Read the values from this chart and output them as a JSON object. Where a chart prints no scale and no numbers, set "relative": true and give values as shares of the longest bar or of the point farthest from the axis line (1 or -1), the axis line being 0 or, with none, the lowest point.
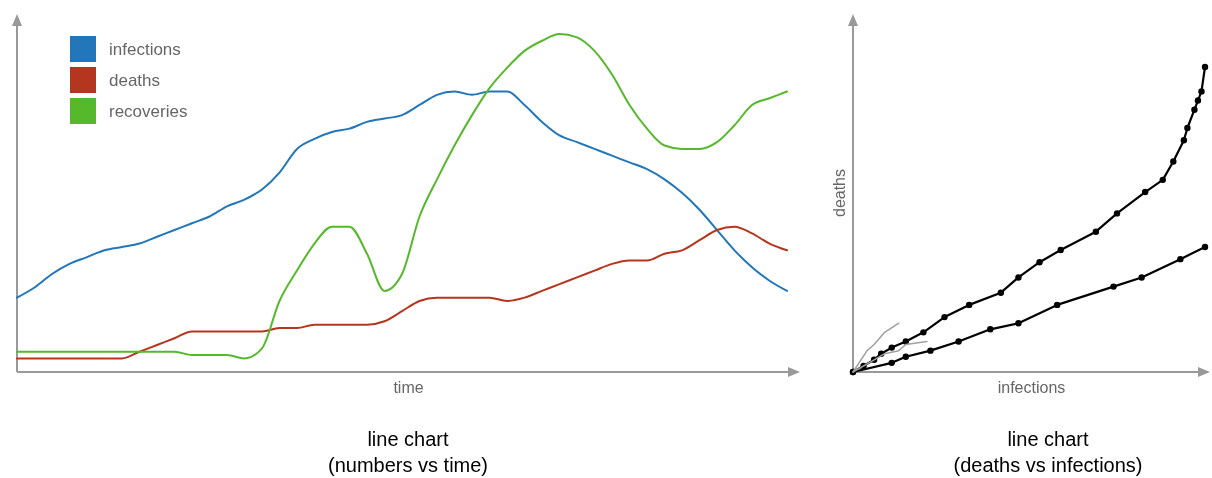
{
  "chart_data": [
    {
      "type": "line",
      "title": "line chart",
      "subtitle": "(numbers vs time)",
      "xlabel": "time",
      "relative": true,
      "legend": "top left",
      "categories": [
        null,
        null,
        null,
        null,
        null,
        null,
        null,
        null,
        null,
        null,
        null,
        null,
        null,
        null,
        null,
        null,
        null,
        null,
        null,
        null,
        null,
        null,
        null,
        null,
        null,
        null,
        null,
        null,
        null,
        null,
        null,
        null,
        null,
        null,
        null,
        null,
        null,
        null,
        null,
        null,
        null,
        null,
        null,
        null,
        null
      ],
      "series": [
        {
          "name": "infections",
          "color": "#2276b9",
          "values": [
            0.22,
            0.25,
            0.29,
            0.32,
            0.34,
            0.36,
            0.37,
            0.38,
            0.4,
            0.42,
            0.44,
            0.46,
            0.49,
            0.51,
            0.54,
            0.59,
            0.66,
            0.69,
            0.71,
            0.72,
            0.74,
            0.75,
            0.76,
            0.79,
            0.82,
            0.83,
            0.82,
            0.83,
            0.83,
            0.79,
            0.74,
            0.7,
            0.68,
            0.66,
            0.64,
            0.62,
            0.6,
            0.57,
            0.53,
            0.48,
            0.42,
            0.36,
            0.31,
            0.27,
            0.24
          ]
        },
        {
          "name": "deaths",
          "color": "#b5361f",
          "values": [
            0.04,
            0.04,
            0.04,
            0.04,
            0.04,
            0.04,
            0.04,
            0.06,
            0.08,
            0.1,
            0.12,
            0.12,
            0.12,
            0.12,
            0.12,
            0.13,
            0.13,
            0.14,
            0.14,
            0.14,
            0.14,
            0.15,
            0.18,
            0.21,
            0.22,
            0.22,
            0.22,
            0.22,
            0.21,
            0.22,
            0.24,
            0.26,
            0.28,
            0.3,
            0.32,
            0.33,
            0.33,
            0.35,
            0.36,
            0.39,
            0.42,
            0.43,
            0.41,
            0.38,
            0.36
          ]
        },
        {
          "name": "recoveries",
          "color": "#56b82b",
          "values": [
            0.06,
            0.06,
            0.06,
            0.06,
            0.06,
            0.06,
            0.06,
            0.06,
            0.06,
            0.06,
            0.05,
            0.05,
            0.05,
            0.04,
            0.07,
            0.21,
            0.3,
            0.38,
            0.43,
            0.43,
            0.35,
            0.24,
            0.29,
            0.46,
            0.57,
            0.67,
            0.76,
            0.84,
            0.9,
            0.95,
            0.98,
            1.0,
            0.99,
            0.95,
            0.88,
            0.79,
            0.72,
            0.67,
            0.66,
            0.66,
            0.68,
            0.73,
            0.79,
            0.81,
            0.83
          ]
        }
      ]
    },
    {
      "type": "line",
      "title": "line chart",
      "subtitle": "(deaths vs infections)",
      "xlabel": "infections",
      "ylabel": "deaths",
      "relative": true,
      "categories": [
        null,
        null,
        null,
        null,
        null,
        null,
        null,
        null,
        null,
        null,
        null,
        null,
        null,
        null,
        null,
        null,
        null,
        null,
        null,
        null,
        null,
        null,
        null,
        null,
        null,
        null,
        null,
        null,
        null,
        null,
        null,
        null,
        null,
        null,
        null,
        null,
        null,
        null,
        null,
        null,
        null,
        null,
        null,
        null,
        null,
        null,
        null,
        null,
        null,
        null,
        null,
        null,
        null,
        null,
        null,
        null,
        null,
        null,
        null,
        null,
        null,
        null,
        null,
        null,
        null,
        null,
        null,
        null,
        null,
        null,
        null,
        null,
        null,
        null,
        null,
        null,
        null,
        null,
        null,
        null,
        null,
        null,
        null,
        null,
        null,
        null,
        null,
        null,
        null,
        null,
        null,
        null,
        null,
        null,
        null,
        null,
        null,
        null,
        null,
        null,
        null
      ],
      "series": [
        {
          "color": "#000000",
          "marker": "circle",
          "values": [
            0,
            null,
            null,
            0.02,
            null,
            null,
            0.04,
            null,
            0.06,
            null,
            null,
            0.08,
            null,
            null,
            null,
            0.1,
            null,
            null,
            null,
            null,
            0.13,
            null,
            null,
            null,
            null,
            null,
            0.18,
            null,
            null,
            null,
            null,
            null,
            null,
            0.22,
            null,
            null,
            null,
            null,
            null,
            null,
            null,
            null,
            0.26,
            null,
            null,
            null,
            null,
            0.31,
            null,
            null,
            null,
            null,
            null,
            0.36,
            null,
            null,
            null,
            null,
            null,
            0.4,
            null,
            null,
            null,
            null,
            null,
            null,
            null,
            null,
            null,
            0.46,
            null,
            null,
            null,
            null,
            null,
            0.52,
            null,
            null,
            null,
            null,
            null,
            null,
            null,
            0.59,
            null,
            null,
            null,
            null,
            0.63,
            null,
            null,
            0.69,
            null,
            null,
            0.76,
            0.8,
            null,
            0.86,
            0.89,
            0.92,
            1.0
          ]
        },
        {
          "color": "#000000",
          "marker": "circle",
          "values": [
            0,
            null,
            null,
            null,
            null,
            null,
            null,
            null,
            null,
            null,
            null,
            0.03,
            null,
            null,
            null,
            0.05,
            null,
            null,
            null,
            null,
            null,
            null,
            0.07,
            null,
            null,
            null,
            null,
            null,
            null,
            null,
            0.1,
            null,
            null,
            null,
            null,
            null,
            null,
            null,
            null,
            0.14,
            null,
            null,
            null,
            null,
            null,
            null,
            null,
            0.16,
            null,
            null,
            null,
            null,
            null,
            null,
            null,
            null,
            null,
            null,
            0.22,
            null,
            null,
            null,
            null,
            null,
            null,
            null,
            null,
            null,
            null,
            null,
            null,
            null,
            null,
            null,
            0.28,
            null,
            null,
            null,
            null,
            null,
            null,
            null,
            0.31,
            null,
            null,
            null,
            null,
            null,
            null,
            null,
            null,
            null,
            null,
            0.37,
            null,
            null,
            null,
            null,
            null,
            null,
            0.41
          ]
        },
        {
          "color": "#a0a0a0",
          "marker": "none",
          "values": [
            0,
            null,
            null,
            null,
            0.07,
            null,
            0.09,
            null,
            null,
            0.13,
            null,
            null,
            null,
            0.16,
            null,
            null,
            null,
            null,
            null,
            null,
            null,
            null,
            null,
            null,
            null,
            null,
            null,
            null,
            null,
            null,
            null,
            null,
            null,
            null,
            null,
            null,
            null,
            null,
            null,
            null,
            null,
            null,
            null,
            null,
            null,
            null,
            null,
            null,
            null,
            null,
            null,
            null,
            null,
            null,
            null,
            null,
            null,
            null,
            null,
            null,
            null,
            null,
            null,
            null,
            null,
            null,
            null,
            null,
            null,
            null,
            null,
            null,
            null,
            null,
            null,
            null,
            null,
            null,
            null,
            null,
            null,
            null,
            null,
            null,
            null,
            null,
            null,
            null,
            null,
            null,
            null,
            null,
            null,
            null,
            null,
            null,
            null,
            null,
            null,
            null,
            null
          ]
        },
        {
          "color": "#a0a0a0",
          "marker": "none",
          "values": [
            0,
            null,
            null,
            null,
            null,
            null,
            0.04,
            null,
            null,
            0.06,
            null,
            null,
            null,
            0.07,
            null,
            0.09,
            null,
            null,
            null,
            null,
            null,
            0.1,
            null,
            null,
            null,
            null,
            null,
            null,
            null,
            null,
            null,
            null,
            null,
            null,
            null,
            null,
            null,
            null,
            null,
            null,
            null,
            null,
            null,
            null,
            null,
            null,
            null,
            null,
            null,
            null,
            null,
            null,
            null,
            null,
            null,
            null,
            null,
            null,
            null,
            null,
            null,
            null,
            null,
            null,
            null,
            null,
            null,
            null,
            null,
            null,
            null,
            null,
            null,
            null,
            null,
            null,
            null,
            null,
            null,
            null,
            null,
            null,
            null,
            null,
            null,
            null,
            null,
            null,
            null,
            null,
            null,
            null,
            null,
            null,
            null,
            null,
            null,
            null,
            null,
            null,
            null
          ]
        }
      ]
    }
  ]
}
